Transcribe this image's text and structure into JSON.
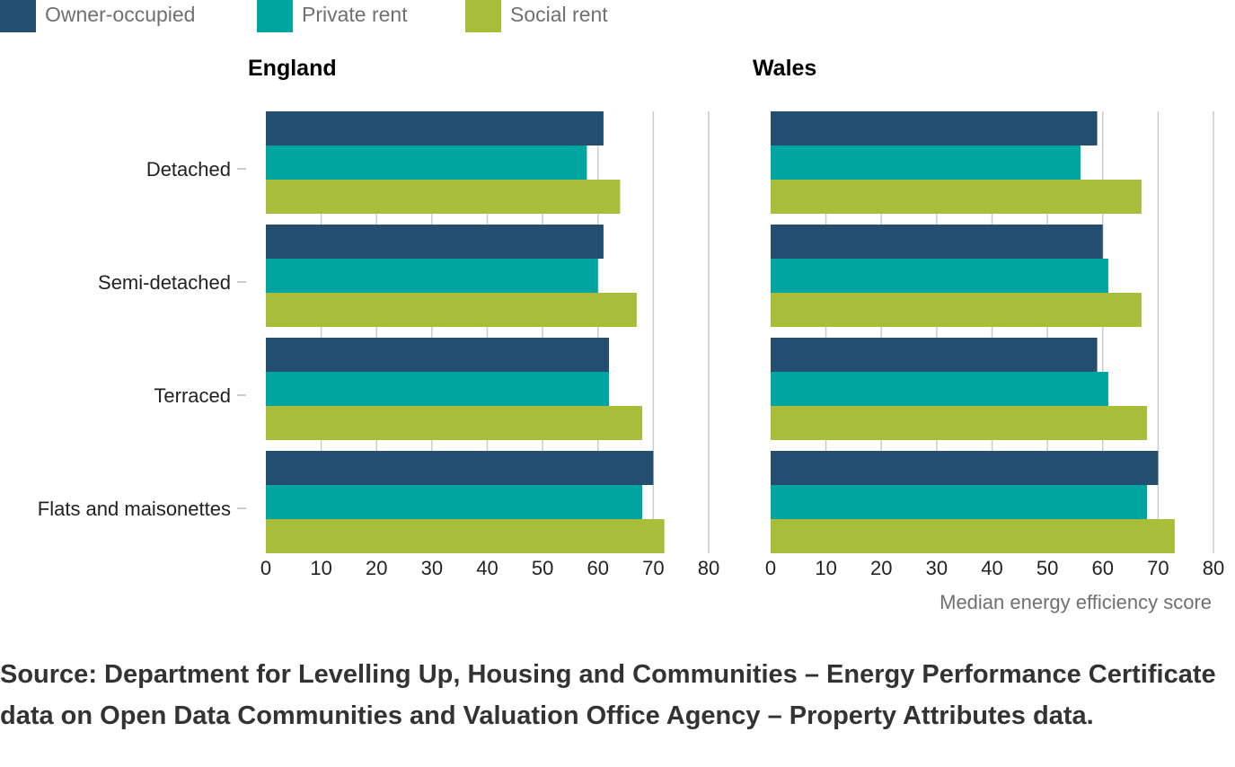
{
  "legend": {
    "items": [
      {
        "label": "Owner-occupied",
        "color": "#234e70"
      },
      {
        "label": "Private rent",
        "color": "#00a5a0"
      },
      {
        "label": "Social rent",
        "color": "#a8be3a"
      }
    ]
  },
  "chart_data": {
    "type": "bar",
    "orientation": "horizontal",
    "categories": [
      "Detached",
      "Semi-detached",
      "Terraced",
      "Flats and maisonettes"
    ],
    "xlabel": "Median energy efficiency score",
    "xlim": [
      0,
      80
    ],
    "xticks": [
      0,
      10,
      20,
      30,
      40,
      50,
      60,
      70,
      80
    ],
    "grid": "vertical",
    "legend_position": "top-left",
    "panels": [
      {
        "title": "England",
        "series": [
          {
            "name": "Owner-occupied",
            "color": "#234e70",
            "values": [
              61,
              61,
              62,
              70
            ]
          },
          {
            "name": "Private rent",
            "color": "#00a5a0",
            "values": [
              58,
              60,
              62,
              68
            ]
          },
          {
            "name": "Social rent",
            "color": "#a8be3a",
            "values": [
              64,
              67,
              68,
              72
            ]
          }
        ]
      },
      {
        "title": "Wales",
        "series": [
          {
            "name": "Owner-occupied",
            "color": "#234e70",
            "values": [
              59,
              60,
              59,
              70
            ]
          },
          {
            "name": "Private rent",
            "color": "#00a5a0",
            "values": [
              56,
              61,
              61,
              68
            ]
          },
          {
            "name": "Social rent",
            "color": "#a8be3a",
            "values": [
              67,
              67,
              68,
              73
            ]
          }
        ]
      }
    ]
  },
  "source": "Source: Department for Levelling Up, Housing and Communities – Energy Performance Certificate data on Open Data Communities and Valuation Office Agency – Property Attributes data."
}
